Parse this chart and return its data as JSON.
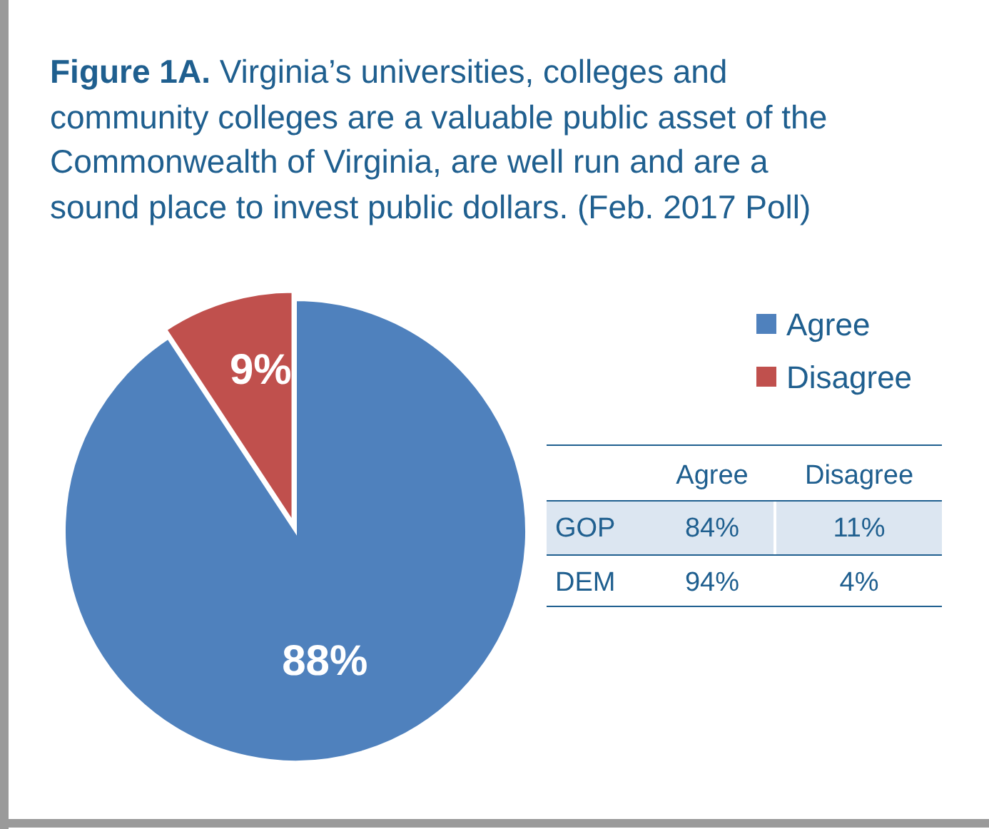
{
  "chart_data": [
    {
      "type": "pie",
      "title": "Figure 1A.",
      "subtitle": "Virginia’s universities, colleges and community colleges are a valuable public asset of the Commonwealth of Virginia, are well run and are a sound place to invest public dollars. (Feb. 2017 Poll)",
      "categories": [
        "Agree",
        "Disagree"
      ],
      "values": [
        88,
        9
      ],
      "value_labels": [
        "88%",
        "9%"
      ],
      "colors": [
        "#4f81bd",
        "#c0504d"
      ],
      "legend": "top right"
    },
    {
      "type": "other",
      "categories": [
        "Agree",
        "Disagree"
      ],
      "series": [
        {
          "name": "GOP",
          "values": [
            84,
            11
          ],
          "value_labels": [
            "84%",
            "11%"
          ]
        },
        {
          "name": "DEM",
          "values": [
            94,
            4
          ],
          "value_labels": [
            "94%",
            "4%"
          ]
        }
      ]
    }
  ]
}
